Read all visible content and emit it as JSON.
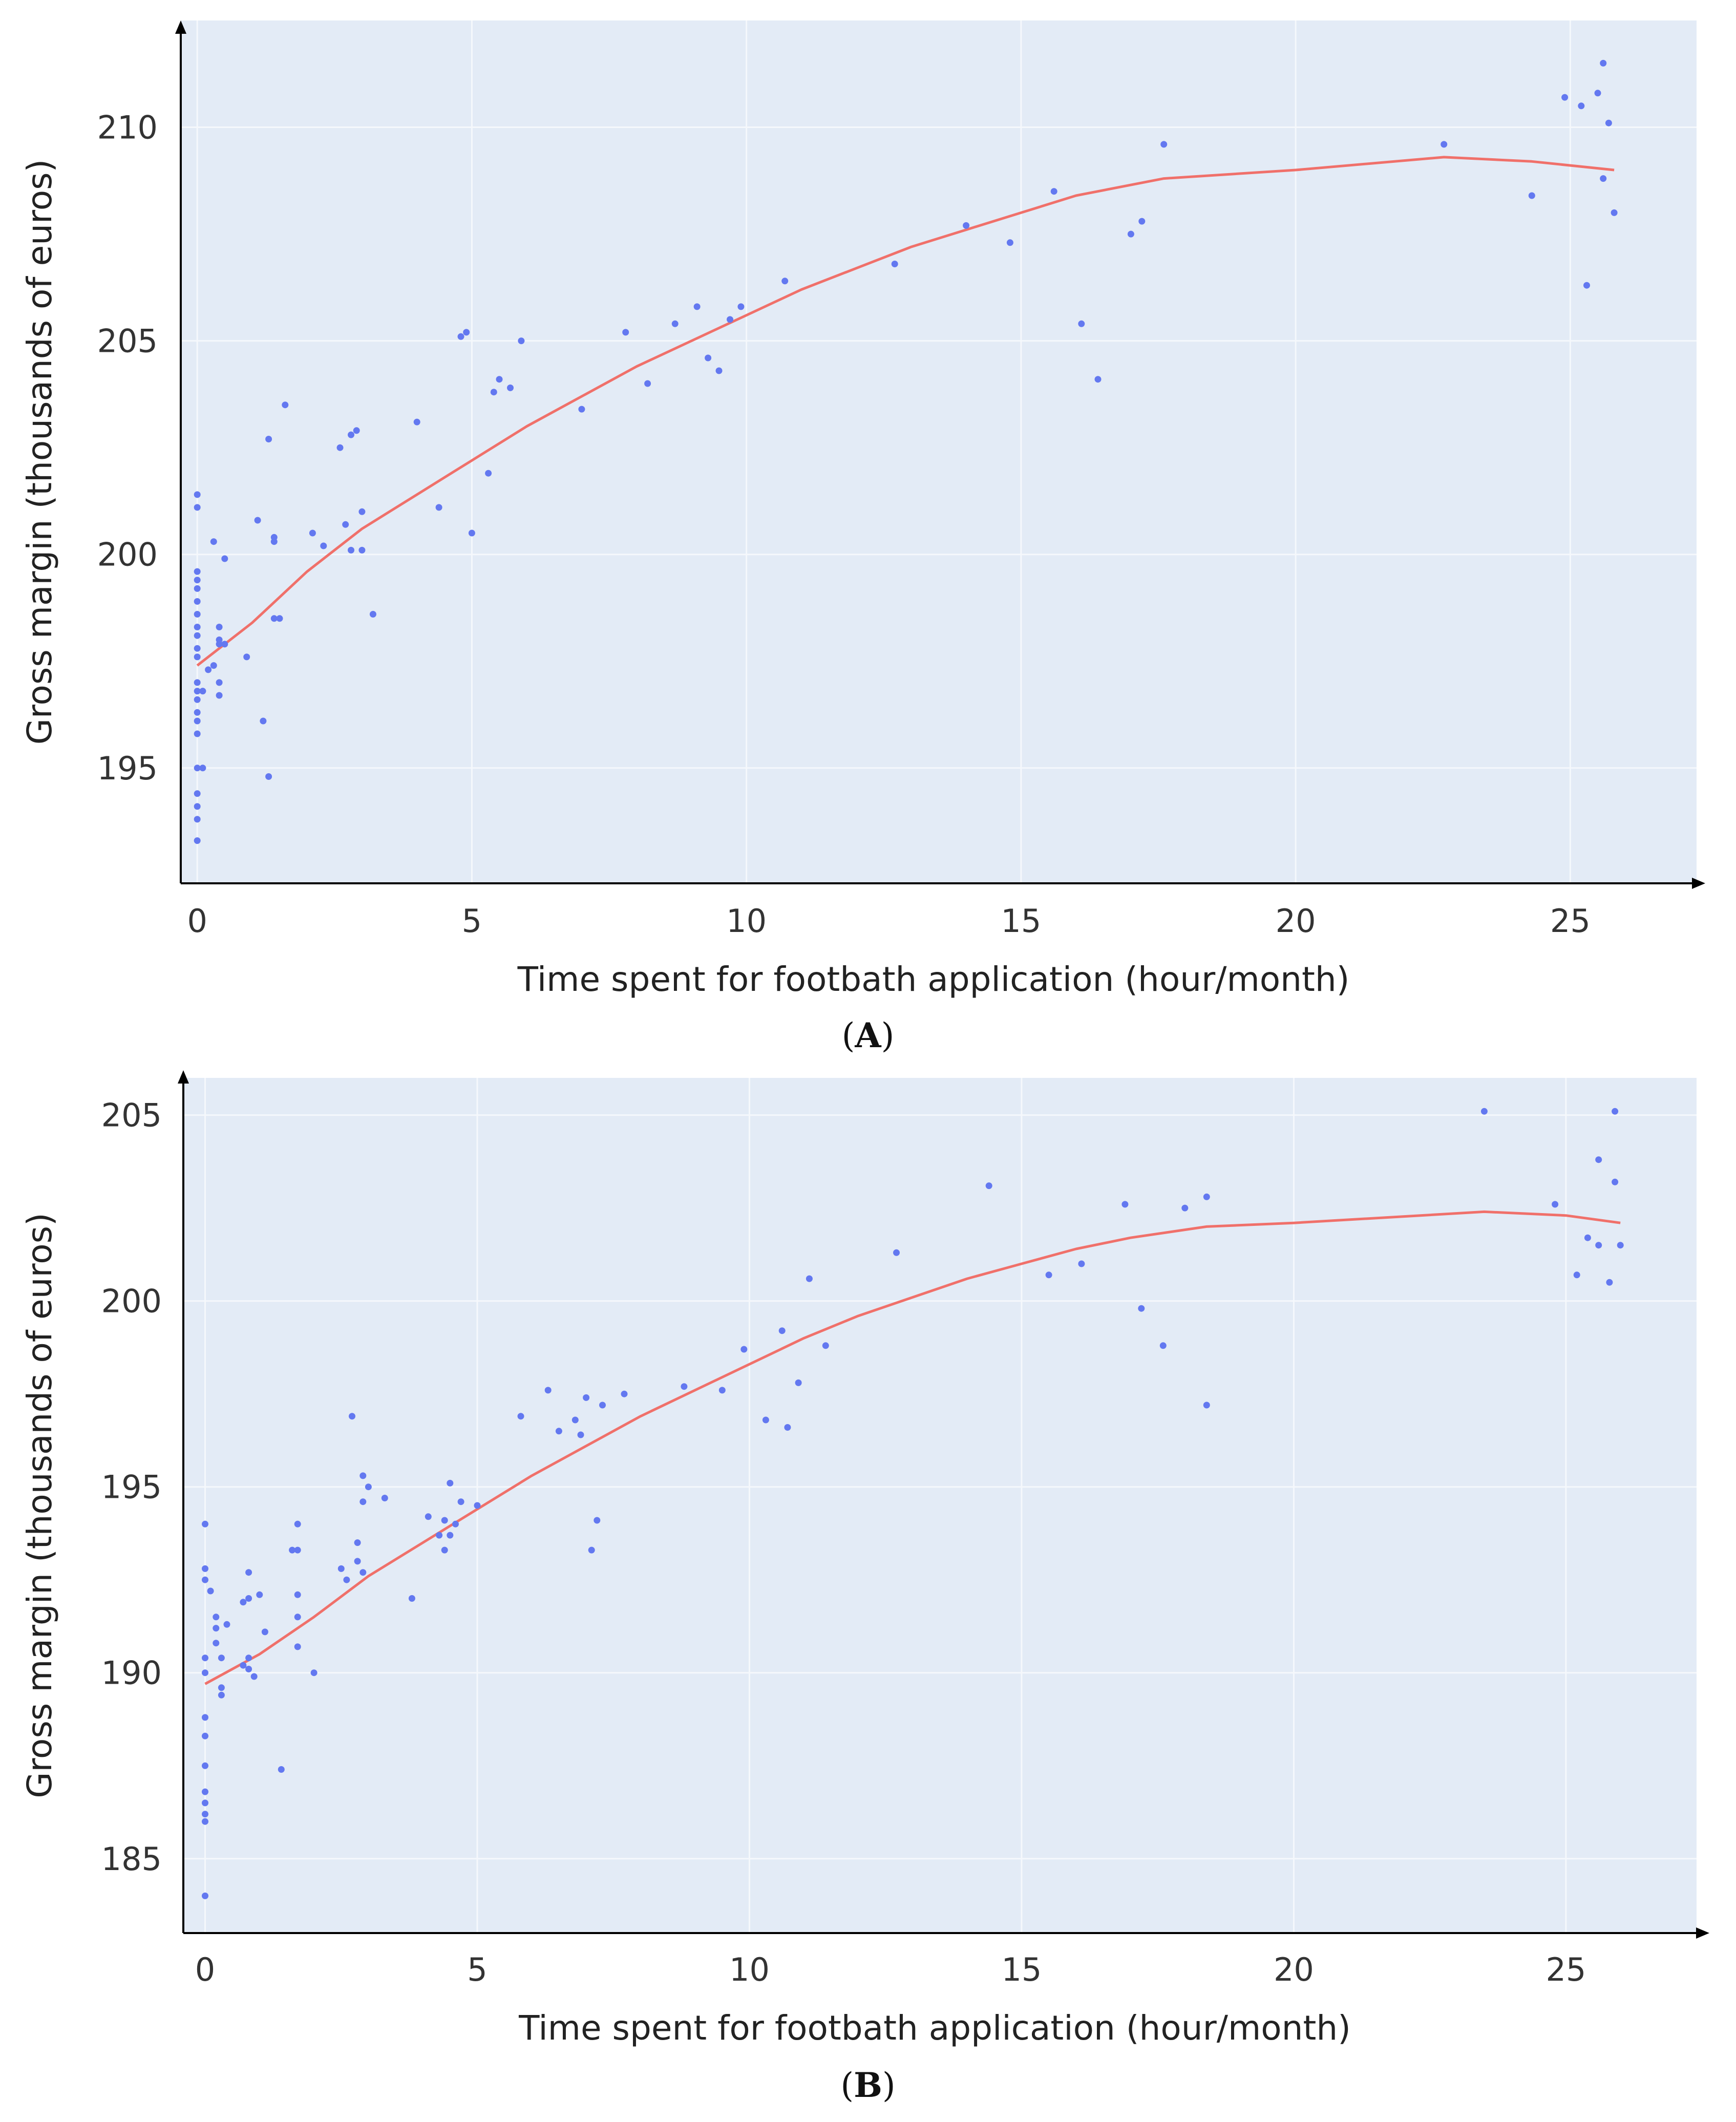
{
  "colors": {
    "plot_background": "#e3ebf6",
    "grid": "#f5f8fc",
    "axis": "#000000",
    "points": "#6378f0",
    "fit_line": "#f0706a"
  },
  "chart_data": [
    {
      "type": "scatter",
      "panel_label": "A",
      "xlabel": "Time spent for footbath application (hour/month)",
      "ylabel": "Gross margin (thousands of euros)",
      "xlim": [
        -0.3,
        27.3
      ],
      "ylim": [
        192.3,
        212.5
      ],
      "xticks": [
        0,
        5,
        10,
        15,
        20,
        25
      ],
      "yticks": [
        195,
        200,
        205,
        210
      ],
      "x_tick_labels": [
        "0",
        "5",
        "10",
        "15",
        "20",
        "25"
      ],
      "y_tick_labels": [
        "195",
        "200",
        "205",
        "210"
      ],
      "series": [
        {
          "name": "observations",
          "points": [
            [
              0,
              201.4
            ],
            [
              0,
              201.1
            ],
            [
              0,
              199.6
            ],
            [
              0,
              199.4
            ],
            [
              0,
              199.2
            ],
            [
              0,
              198.9
            ],
            [
              0,
              198.6
            ],
            [
              0,
              198.3
            ],
            [
              0,
              198.1
            ],
            [
              0,
              197.8
            ],
            [
              0,
              197.6
            ],
            [
              0,
              197.0
            ],
            [
              0,
              196.8
            ],
            [
              0,
              196.6
            ],
            [
              0,
              196.3
            ],
            [
              0,
              196.1
            ],
            [
              0,
              195.8
            ],
            [
              0,
              195.0
            ],
            [
              0,
              194.4
            ],
            [
              0,
              194.1
            ],
            [
              0,
              193.8
            ],
            [
              0,
              193.3
            ],
            [
              0.1,
              195.0
            ],
            [
              0.1,
              196.8
            ],
            [
              0.2,
              197.3
            ],
            [
              0.3,
              197.4
            ],
            [
              0.4,
              197.9
            ],
            [
              0.4,
              198.0
            ],
            [
              0.3,
              200.3
            ],
            [
              0.4,
              198.3
            ],
            [
              0.5,
              197.9
            ],
            [
              0.4,
              196.7
            ],
            [
              0.4,
              197.0
            ],
            [
              0.5,
              199.9
            ],
            [
              0.9,
              197.6
            ],
            [
              1.1,
              200.8
            ],
            [
              1.2,
              196.1
            ],
            [
              1.3,
              202.7
            ],
            [
              1.3,
              194.8
            ],
            [
              1.4,
              200.3
            ],
            [
              1.4,
              198.5
            ],
            [
              1.4,
              200.4
            ],
            [
              1.5,
              198.5
            ],
            [
              1.6,
              203.5
            ],
            [
              2.1,
              200.5
            ],
            [
              2.3,
              200.2
            ],
            [
              2.6,
              202.5
            ],
            [
              2.7,
              200.7
            ],
            [
              2.8,
              200.1
            ],
            [
              2.8,
              202.8
            ],
            [
              2.9,
              202.9
            ],
            [
              3.0,
              201.0
            ],
            [
              3.0,
              200.1
            ],
            [
              3.2,
              198.6
            ],
            [
              4.0,
              203.1
            ],
            [
              4.4,
              201.1
            ],
            [
              4.8,
              205.1
            ],
            [
              4.9,
              205.2
            ],
            [
              5.0,
              200.5
            ],
            [
              5.3,
              201.9
            ],
            [
              5.4,
              203.8
            ],
            [
              5.5,
              204.1
            ],
            [
              5.7,
              203.9
            ],
            [
              5.9,
              205.0
            ],
            [
              7.0,
              203.4
            ],
            [
              7.8,
              205.2
            ],
            [
              8.2,
              204.0
            ],
            [
              8.7,
              205.4
            ],
            [
              9.1,
              205.8
            ],
            [
              9.3,
              204.6
            ],
            [
              9.5,
              204.3
            ],
            [
              9.7,
              205.5
            ],
            [
              9.9,
              205.8
            ],
            [
              10.7,
              206.4
            ],
            [
              12.7,
              206.8
            ],
            [
              14.0,
              207.7
            ],
            [
              14.8,
              207.3
            ],
            [
              15.6,
              208.5
            ],
            [
              16.1,
              205.4
            ],
            [
              16.4,
              204.1
            ],
            [
              17.0,
              207.5
            ],
            [
              17.2,
              207.8
            ],
            [
              17.6,
              209.6
            ],
            [
              22.7,
              209.6
            ],
            [
              24.3,
              208.4
            ],
            [
              24.9,
              210.7
            ],
            [
              25.2,
              210.5
            ],
            [
              25.3,
              206.3
            ],
            [
              25.5,
              210.8
            ],
            [
              25.6,
              208.8
            ],
            [
              25.6,
              211.5
            ],
            [
              25.7,
              210.1
            ],
            [
              25.8,
              208.0
            ]
          ]
        },
        {
          "name": "fit",
          "points": [
            [
              0,
              197.4
            ],
            [
              1,
              198.4
            ],
            [
              2,
              199.6
            ],
            [
              3,
              200.6
            ],
            [
              4,
              201.4
            ],
            [
              5,
              202.2
            ],
            [
              6,
              203.0
            ],
            [
              7,
              203.7
            ],
            [
              8,
              204.4
            ],
            [
              9,
              205.0
            ],
            [
              10,
              205.6
            ],
            [
              11,
              206.2
            ],
            [
              12,
              206.7
            ],
            [
              13,
              207.2
            ],
            [
              14,
              207.6
            ],
            [
              15,
              208.0
            ],
            [
              16,
              208.4
            ],
            [
              17.6,
              208.8
            ],
            [
              20,
              209.0
            ],
            [
              22.7,
              209.3
            ],
            [
              24.3,
              209.2
            ],
            [
              25.8,
              209.0
            ]
          ]
        }
      ]
    },
    {
      "type": "scatter",
      "panel_label": "B",
      "xlabel": "Time spent for footbath application (hour/month)",
      "ylabel": "Gross margin (thousands of euros)",
      "xlim": [
        -0.4,
        27.4
      ],
      "ylim": [
        183.0,
        206.0
      ],
      "xticks": [
        0,
        5,
        10,
        15,
        20,
        25
      ],
      "yticks": [
        185,
        190,
        195,
        200,
        205
      ],
      "x_tick_labels": [
        "0",
        "5",
        "10",
        "15",
        "20",
        "25"
      ],
      "y_tick_labels": [
        "185",
        "190",
        "195",
        "200",
        "205"
      ],
      "series": [
        {
          "name": "observations",
          "points": [
            [
              0,
              194.0
            ],
            [
              0,
              192.8
            ],
            [
              0,
              192.5
            ],
            [
              0,
              190.4
            ],
            [
              0,
              190.0
            ],
            [
              0,
              188.8
            ],
            [
              0,
              188.3
            ],
            [
              0,
              187.5
            ],
            [
              0,
              186.8
            ],
            [
              0,
              186.5
            ],
            [
              0,
              186.2
            ],
            [
              0,
              186.0
            ],
            [
              0,
              184.0
            ],
            [
              0.1,
              192.2
            ],
            [
              0.2,
              191.5
            ],
            [
              0.2,
              190.8
            ],
            [
              0.2,
              191.2
            ],
            [
              0.3,
              190.4
            ],
            [
              0.3,
              189.6
            ],
            [
              0.3,
              189.4
            ],
            [
              0.4,
              191.3
            ],
            [
              0.7,
              191.9
            ],
            [
              0.7,
              190.2
            ],
            [
              0.8,
              192.7
            ],
            [
              0.8,
              192.0
            ],
            [
              0.8,
              190.4
            ],
            [
              0.8,
              190.1
            ],
            [
              0.9,
              189.9
            ],
            [
              1.0,
              192.1
            ],
            [
              1.1,
              191.1
            ],
            [
              1.4,
              187.4
            ],
            [
              1.6,
              193.3
            ],
            [
              1.7,
              194.0
            ],
            [
              1.7,
              193.3
            ],
            [
              1.7,
              192.1
            ],
            [
              1.7,
              191.5
            ],
            [
              1.7,
              190.7
            ],
            [
              2.0,
              190.0
            ],
            [
              2.5,
              192.8
            ],
            [
              2.6,
              192.5
            ],
            [
              2.7,
              196.9
            ],
            [
              2.8,
              193.5
            ],
            [
              2.8,
              193.0
            ],
            [
              2.9,
              195.3
            ],
            [
              2.9,
              194.6
            ],
            [
              2.9,
              192.7
            ],
            [
              3.0,
              195.0
            ],
            [
              3.3,
              194.7
            ],
            [
              3.8,
              192.0
            ],
            [
              4.1,
              194.2
            ],
            [
              4.3,
              193.7
            ],
            [
              4.4,
              194.1
            ],
            [
              4.4,
              193.3
            ],
            [
              4.5,
              195.1
            ],
            [
              4.5,
              193.7
            ],
            [
              4.6,
              194.0
            ],
            [
              4.7,
              194.6
            ],
            [
              5.0,
              194.5
            ],
            [
              5.8,
              196.9
            ],
            [
              6.3,
              197.6
            ],
            [
              6.5,
              196.5
            ],
            [
              6.8,
              196.8
            ],
            [
              6.9,
              196.4
            ],
            [
              7.0,
              197.4
            ],
            [
              7.1,
              193.3
            ],
            [
              7.2,
              194.1
            ],
            [
              7.3,
              197.2
            ],
            [
              7.7,
              197.5
            ],
            [
              8.8,
              197.7
            ],
            [
              9.5,
              197.6
            ],
            [
              9.9,
              198.7
            ],
            [
              10.3,
              196.8
            ],
            [
              10.6,
              199.2
            ],
            [
              10.7,
              196.6
            ],
            [
              10.9,
              197.8
            ],
            [
              11.1,
              200.6
            ],
            [
              11.4,
              198.8
            ],
            [
              12.7,
              201.3
            ],
            [
              14.4,
              203.1
            ],
            [
              15.5,
              200.7
            ],
            [
              16.1,
              201.0
            ],
            [
              16.9,
              202.6
            ],
            [
              17.2,
              199.8
            ],
            [
              17.6,
              198.8
            ],
            [
              18.0,
              202.5
            ],
            [
              18.4,
              202.8
            ],
            [
              18.4,
              197.2
            ],
            [
              23.5,
              205.1
            ],
            [
              24.8,
              202.6
            ],
            [
              25.2,
              200.7
            ],
            [
              25.4,
              201.7
            ],
            [
              25.6,
              203.8
            ],
            [
              25.6,
              201.5
            ],
            [
              25.8,
              200.5
            ],
            [
              25.9,
              203.2
            ],
            [
              25.9,
              205.1
            ],
            [
              26.0,
              201.5
            ]
          ]
        },
        {
          "name": "fit",
          "points": [
            [
              0,
              189.7
            ],
            [
              1,
              190.5
            ],
            [
              2,
              191.5
            ],
            [
              3,
              192.6
            ],
            [
              4,
              193.5
            ],
            [
              5,
              194.4
            ],
            [
              6,
              195.3
            ],
            [
              7,
              196.1
            ],
            [
              8,
              196.9
            ],
            [
              9,
              197.6
            ],
            [
              10,
              198.3
            ],
            [
              11,
              199.0
            ],
            [
              12,
              199.6
            ],
            [
              13,
              200.1
            ],
            [
              14,
              200.6
            ],
            [
              15,
              201.0
            ],
            [
              16,
              201.4
            ],
            [
              17,
              201.7
            ],
            [
              18.4,
              202.0
            ],
            [
              20,
              202.1
            ],
            [
              23.5,
              202.4
            ],
            [
              25,
              202.3
            ],
            [
              26.0,
              202.1
            ]
          ]
        }
      ]
    }
  ]
}
